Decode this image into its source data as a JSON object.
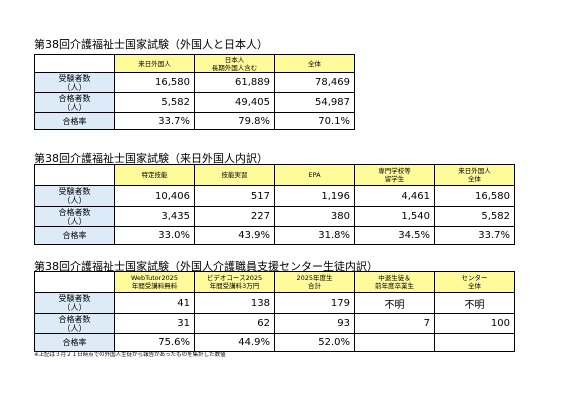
{
  "t1": {
    "title": "第38回介護福祉士国家試験（外国人と日本人）",
    "headers": [
      "来日外国人",
      "日本人\n長期外国人含む",
      "全体"
    ],
    "rows": [
      {
        "label": "受験者数\n（人）",
        "values": [
          "16,580",
          "61,889",
          "78,469"
        ]
      },
      {
        "label": "合格者数\n（人）",
        "values": [
          "5,582",
          "49,405",
          "54,987"
        ]
      },
      {
        "label": "合格率",
        "values": [
          "33.7%",
          "79.8%",
          "70.1%"
        ]
      }
    ]
  },
  "t2": {
    "title": "第38回介護福祉士国家試験（来日外国人内訳）",
    "headers": [
      "特定技能",
      "技能実習",
      "EPA",
      "専門学校等\n留学生",
      "来日外国人\n全体"
    ],
    "rows": [
      {
        "label": "受験者数\n（人）",
        "values": [
          "10,406",
          "517",
          "1,196",
          "4,461",
          "16,580"
        ]
      },
      {
        "label": "合格者数\n（人）",
        "values": [
          "3,435",
          "227",
          "380",
          "1,540",
          "5,582"
        ]
      },
      {
        "label": "合格率",
        "values": [
          "33.0%",
          "43.9%",
          "31.8%",
          "34.5%",
          "33.7%"
        ]
      }
    ]
  },
  "t3": {
    "title": "第38回介護福祉士国家試験（外国人介護職員支援センター生徒内訳）",
    "headers": [
      "WebTutor2025\n年間受講料無料",
      "ビデオコース2025\n年間受講料3万円",
      "2025年度生\n合計",
      "中退生徒＆\n前年度卒業生",
      "センター\n全体"
    ],
    "rows": [
      {
        "label": "受験者数\n（人）",
        "values": [
          "41",
          "138",
          "179",
          "不明",
          "不明"
        ]
      },
      {
        "label": "合格者数\n（人）",
        "values": [
          "31",
          "62",
          "93",
          "7",
          "100"
        ]
      },
      {
        "label": "合格率",
        "values": [
          "75.6%",
          "44.9%",
          "52.0%",
          "",
          ""
        ]
      }
    ]
  },
  "note": "※上記は３月２１日時点での外国人生徒から報告があったものを集計した数値"
}
